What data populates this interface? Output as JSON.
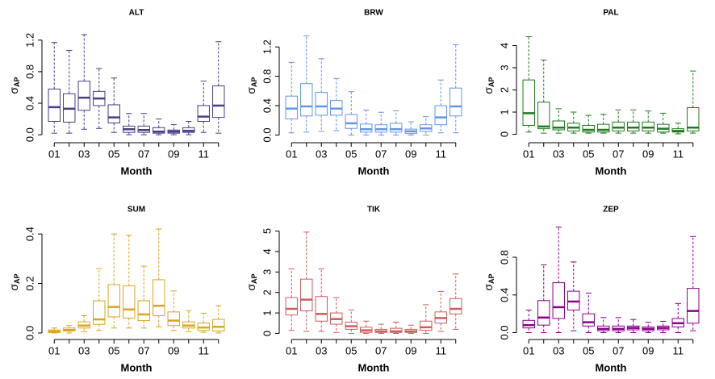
{
  "chart_data": [
    {
      "type": "box",
      "title": "ALT",
      "xlabel": "Month",
      "ylabel": "σ",
      "ylabel_subscript": "AP",
      "color": "#483D8B",
      "categories": [
        "01",
        null,
        "03",
        null,
        "05",
        null,
        "07",
        null,
        "09",
        null,
        "11",
        null
      ],
      "ylim": [
        -0.05,
        1.3
      ],
      "yticks": [
        {
          "value": 0,
          "label": "0.0"
        },
        0.4,
        0.8,
        1.2
      ],
      "boxes": [
        {
          "whislo": 0.02,
          "q1": 0.17,
          "med": 0.35,
          "q3": 0.58,
          "whishi": 1.17
        },
        {
          "whislo": 0.02,
          "q1": 0.16,
          "med": 0.33,
          "q3": 0.52,
          "whishi": 1.07
        },
        {
          "whislo": 0.07,
          "q1": 0.31,
          "med": 0.47,
          "q3": 0.68,
          "whishi": 1.27
        },
        {
          "whislo": 0.08,
          "q1": 0.37,
          "med": 0.46,
          "q3": 0.55,
          "whishi": 0.84
        },
        {
          "whislo": 0.03,
          "q1": 0.15,
          "med": 0.22,
          "q3": 0.38,
          "whishi": 0.72
        },
        {
          "whislo": 0.0,
          "q1": 0.03,
          "med": 0.07,
          "q3": 0.11,
          "whishi": 0.27
        },
        {
          "whislo": 0.0,
          "q1": 0.03,
          "med": 0.06,
          "q3": 0.11,
          "whishi": 0.27
        },
        {
          "whislo": 0.0,
          "q1": 0.02,
          "med": 0.04,
          "q3": 0.09,
          "whishi": 0.2
        },
        {
          "whislo": 0.0,
          "q1": 0.02,
          "med": 0.04,
          "q3": 0.06,
          "whishi": 0.13
        },
        {
          "whislo": 0.0,
          "q1": 0.03,
          "med": 0.05,
          "q3": 0.09,
          "whishi": 0.17
        },
        {
          "whislo": 0.03,
          "q1": 0.17,
          "med": 0.23,
          "q3": 0.37,
          "whishi": 0.68
        },
        {
          "whislo": 0.02,
          "q1": 0.22,
          "med": 0.37,
          "q3": 0.62,
          "whishi": 1.18
        }
      ]
    },
    {
      "type": "box",
      "title": "BRW",
      "xlabel": "Month",
      "ylabel": "σ",
      "ylabel_subscript": "AP",
      "color": "#6495ED",
      "categories": [
        "01",
        null,
        "03",
        null,
        "05",
        null,
        "07",
        null,
        "09",
        null,
        "11",
        null
      ],
      "ylim": [
        -0.05,
        1.4
      ],
      "yticks": [
        {
          "value": 0,
          "label": "0.0"
        },
        0.4,
        0.8,
        1.2
      ],
      "boxes": [
        {
          "whislo": 0.03,
          "q1": 0.22,
          "med": 0.36,
          "q3": 0.53,
          "whishi": 0.99
        },
        {
          "whislo": 0.04,
          "q1": 0.26,
          "med": 0.39,
          "q3": 0.7,
          "whishi": 1.35
        },
        {
          "whislo": 0.05,
          "q1": 0.27,
          "med": 0.39,
          "q3": 0.58,
          "whishi": 1.04
        },
        {
          "whislo": 0.06,
          "q1": 0.27,
          "med": 0.36,
          "q3": 0.47,
          "whishi": 0.77
        },
        {
          "whislo": 0.0,
          "q1": 0.09,
          "med": 0.16,
          "q3": 0.28,
          "whishi": 0.59
        },
        {
          "whislo": 0.0,
          "q1": 0.04,
          "med": 0.08,
          "q3": 0.15,
          "whishi": 0.34
        },
        {
          "whislo": 0.0,
          "q1": 0.04,
          "med": 0.08,
          "q3": 0.14,
          "whishi": 0.31
        },
        {
          "whislo": 0.0,
          "q1": 0.04,
          "med": 0.08,
          "q3": 0.16,
          "whishi": 0.33
        },
        {
          "whislo": 0.0,
          "q1": 0.02,
          "med": 0.05,
          "q3": 0.08,
          "whishi": 0.18
        },
        {
          "whislo": 0.0,
          "q1": 0.05,
          "med": 0.09,
          "q3": 0.14,
          "whishi": 0.25
        },
        {
          "whislo": 0.03,
          "q1": 0.14,
          "med": 0.24,
          "q3": 0.4,
          "whishi": 0.75
        },
        {
          "whislo": 0.03,
          "q1": 0.26,
          "med": 0.39,
          "q3": 0.64,
          "whishi": 1.23
        }
      ]
    },
    {
      "type": "box",
      "title": "PAL",
      "xlabel": "Month",
      "ylabel": "σ",
      "ylabel_subscript": "AP",
      "color": "#1E7B1E",
      "categories": [
        "01",
        null,
        "03",
        null,
        "05",
        null,
        "07",
        null,
        "09",
        null,
        "11",
        null
      ],
      "ylim": [
        -0.2,
        4.6
      ],
      "yticks": [
        0,
        1,
        2,
        3,
        4
      ],
      "boxes": [
        {
          "whislo": 0.1,
          "q1": 0.4,
          "med": 0.95,
          "q3": 2.45,
          "whishi": 4.4
        },
        {
          "whislo": 0.05,
          "q1": 0.25,
          "med": 0.35,
          "q3": 1.45,
          "whishi": 3.35
        },
        {
          "whislo": 0.05,
          "q1": 0.2,
          "med": 0.3,
          "q3": 0.6,
          "whishi": 1.15
        },
        {
          "whislo": 0.05,
          "q1": 0.15,
          "med": 0.3,
          "q3": 0.5,
          "whishi": 1.0
        },
        {
          "whislo": 0.05,
          "q1": 0.1,
          "med": 0.2,
          "q3": 0.4,
          "whishi": 0.85
        },
        {
          "whislo": 0.05,
          "q1": 0.1,
          "med": 0.2,
          "q3": 0.45,
          "whishi": 0.9
        },
        {
          "whislo": 0.05,
          "q1": 0.15,
          "med": 0.3,
          "q3": 0.55,
          "whishi": 1.1
        },
        {
          "whislo": 0.05,
          "q1": 0.15,
          "med": 0.3,
          "q3": 0.55,
          "whishi": 1.1
        },
        {
          "whislo": 0.05,
          "q1": 0.15,
          "med": 0.3,
          "q3": 0.55,
          "whishi": 1.05
        },
        {
          "whislo": 0.05,
          "q1": 0.1,
          "med": 0.25,
          "q3": 0.45,
          "whishi": 0.95
        },
        {
          "whislo": 0.02,
          "q1": 0.1,
          "med": 0.15,
          "q3": 0.25,
          "whishi": 0.5
        },
        {
          "whislo": 0.05,
          "q1": 0.15,
          "med": 0.3,
          "q3": 1.2,
          "whishi": 2.85
        }
      ]
    },
    {
      "type": "box",
      "title": "SUM",
      "xlabel": "Month",
      "ylabel": "σ",
      "ylabel_subscript": "AP",
      "color": "#DAA520",
      "categories": [
        "01",
        null,
        "03",
        null,
        "05",
        null,
        "07",
        null,
        "09",
        null,
        "11",
        null
      ],
      "ylim": [
        -0.01,
        0.42
      ],
      "yticks": [
        {
          "value": 0,
          "label": "0.0"
        },
        0.2,
        0.4
      ],
      "boxes": [
        {
          "whislo": 0,
          "q1": 0.002,
          "med": 0.006,
          "q3": 0.012,
          "whishi": 0.02
        },
        {
          "whislo": 0,
          "q1": 0.008,
          "med": 0.012,
          "q3": 0.02,
          "whishi": 0.03
        },
        {
          "whislo": 0.005,
          "q1": 0.02,
          "med": 0.03,
          "q3": 0.045,
          "whishi": 0.07
        },
        {
          "whislo": 0.01,
          "q1": 0.035,
          "med": 0.055,
          "q3": 0.13,
          "whishi": 0.26
        },
        {
          "whislo": 0.02,
          "q1": 0.065,
          "med": 0.105,
          "q3": 0.195,
          "whishi": 0.4
        },
        {
          "whislo": 0.02,
          "q1": 0.06,
          "med": 0.095,
          "q3": 0.19,
          "whishi": 0.395
        },
        {
          "whislo": 0.02,
          "q1": 0.05,
          "med": 0.075,
          "q3": 0.13,
          "whishi": 0.27
        },
        {
          "whislo": 0.025,
          "q1": 0.07,
          "med": 0.11,
          "q3": 0.215,
          "whishi": 0.42
        },
        {
          "whislo": 0.01,
          "q1": 0.03,
          "med": 0.05,
          "q3": 0.085,
          "whishi": 0.17
        },
        {
          "whislo": 0.005,
          "q1": 0.02,
          "med": 0.03,
          "q3": 0.045,
          "whishi": 0.09
        },
        {
          "whislo": 0.003,
          "q1": 0.01,
          "med": 0.022,
          "q3": 0.04,
          "whishi": 0.08
        },
        {
          "whislo": 0,
          "q1": 0.008,
          "med": 0.025,
          "q3": 0.055,
          "whishi": 0.11
        }
      ]
    },
    {
      "type": "box",
      "title": "TIK",
      "xlabel": "Month",
      "ylabel": "σ",
      "ylabel_subscript": "AP",
      "color": "#CD5C5C",
      "categories": [
        "01",
        null,
        "03",
        null,
        "05",
        null,
        "07",
        null,
        "09",
        null,
        "11",
        null
      ],
      "ylim": [
        -0.1,
        5.1
      ],
      "yticks": [
        0,
        1,
        2,
        3,
        4,
        5
      ],
      "boxes": [
        {
          "whislo": 0.15,
          "q1": 0.9,
          "med": 1.2,
          "q3": 1.75,
          "whishi": 3.15
        },
        {
          "whislo": 0.1,
          "q1": 1.1,
          "med": 1.65,
          "q3": 2.65,
          "whishi": 4.95
        },
        {
          "whislo": 0.1,
          "q1": 0.6,
          "med": 0.95,
          "q3": 1.8,
          "whishi": 3.15
        },
        {
          "whislo": 0.05,
          "q1": 0.45,
          "med": 0.7,
          "q3": 1.0,
          "whishi": 1.75
        },
        {
          "whislo": 0,
          "q1": 0.2,
          "med": 0.35,
          "q3": 0.55,
          "whishi": 1.15
        },
        {
          "whislo": 0,
          "q1": 0.05,
          "med": 0.15,
          "q3": 0.3,
          "whishi": 0.6
        },
        {
          "whislo": 0,
          "q1": 0.05,
          "med": 0.1,
          "q3": 0.2,
          "whishi": 0.45
        },
        {
          "whislo": 0,
          "q1": 0.05,
          "med": 0.1,
          "q3": 0.25,
          "whishi": 0.55
        },
        {
          "whislo": 0,
          "q1": 0.05,
          "med": 0.1,
          "q3": 0.2,
          "whishi": 0.4
        },
        {
          "whislo": 0,
          "q1": 0.15,
          "med": 0.3,
          "q3": 0.6,
          "whishi": 1.4
        },
        {
          "whislo": 0.1,
          "q1": 0.5,
          "med": 0.75,
          "q3": 1.05,
          "whishi": 2.05
        },
        {
          "whislo": 0.2,
          "q1": 0.95,
          "med": 1.2,
          "q3": 1.7,
          "whishi": 2.9
        }
      ]
    },
    {
      "type": "box",
      "title": "ZEP",
      "xlabel": "Month",
      "ylabel": "σ",
      "ylabel_subscript": "AP",
      "color": "#8B008B",
      "categories": [
        "01",
        null,
        "03",
        null,
        "05",
        null,
        "07",
        null,
        "09",
        null,
        "11",
        null
      ],
      "ylim": [
        -0.03,
        1.1
      ],
      "yticks": [
        {
          "value": 0,
          "label": "0.0"
        },
        0.4,
        0.8
      ],
      "boxes": [
        {
          "whislo": 0,
          "q1": 0.05,
          "med": 0.08,
          "q3": 0.13,
          "whishi": 0.24
        },
        {
          "whislo": 0,
          "q1": 0.08,
          "med": 0.16,
          "q3": 0.34,
          "whishi": 0.72
        },
        {
          "whislo": 0,
          "q1": 0.15,
          "med": 0.27,
          "q3": 0.53,
          "whishi": 1.12
        },
        {
          "whislo": 0.02,
          "q1": 0.24,
          "med": 0.33,
          "q3": 0.44,
          "whishi": 0.75
        },
        {
          "whislo": 0,
          "q1": 0.07,
          "med": 0.11,
          "q3": 0.2,
          "whishi": 0.42
        },
        {
          "whislo": 0,
          "q1": 0.02,
          "med": 0.04,
          "q3": 0.07,
          "whishi": 0.16
        },
        {
          "whislo": 0,
          "q1": 0.02,
          "med": 0.04,
          "q3": 0.07,
          "whishi": 0.16
        },
        {
          "whislo": 0,
          "q1": 0.03,
          "med": 0.05,
          "q3": 0.07,
          "whishi": 0.14
        },
        {
          "whislo": 0,
          "q1": 0.02,
          "med": 0.04,
          "q3": 0.06,
          "whishi": 0.11
        },
        {
          "whislo": 0,
          "q1": 0.03,
          "med": 0.05,
          "q3": 0.07,
          "whishi": 0.12
        },
        {
          "whislo": 0,
          "q1": 0.06,
          "med": 0.1,
          "q3": 0.15,
          "whishi": 0.31
        },
        {
          "whislo": 0.02,
          "q1": 0.1,
          "med": 0.23,
          "q3": 0.47,
          "whishi": 1.02
        }
      ]
    }
  ]
}
